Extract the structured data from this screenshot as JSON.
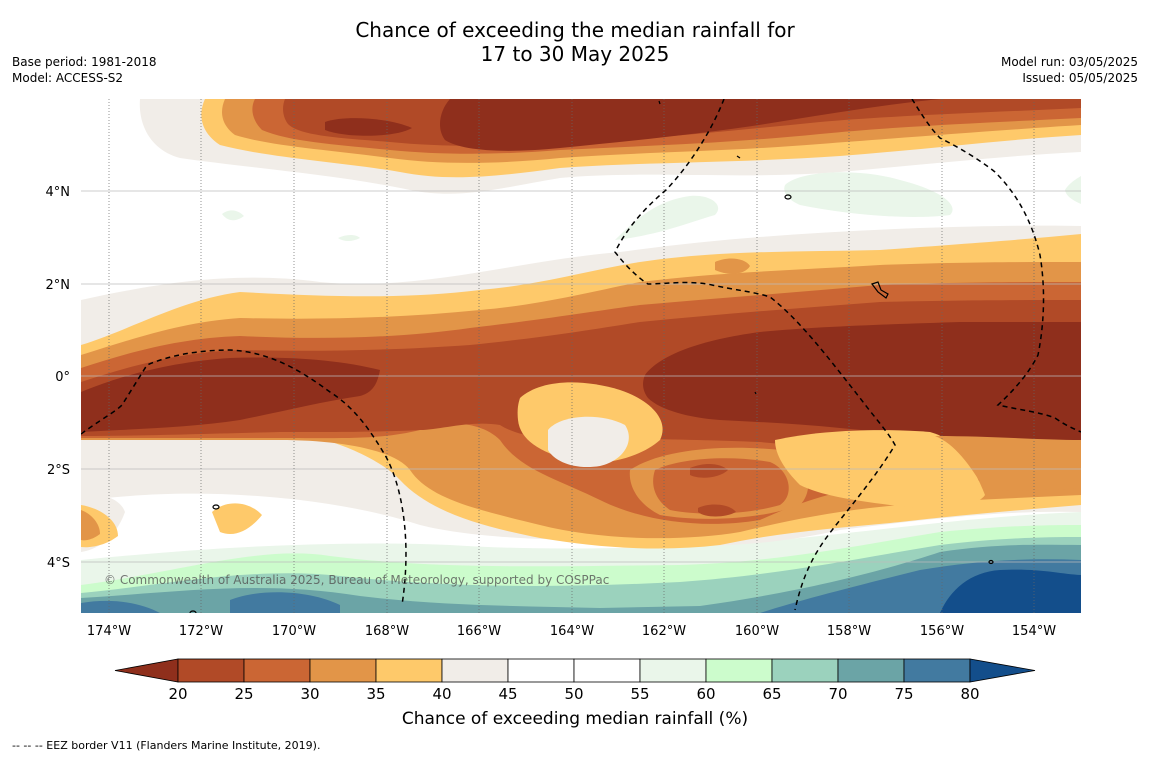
{
  "title_line1": "Chance of exceeding the median rainfall for",
  "title_line2": "17 to 30 May 2025",
  "base_period": "Base period: 1981-2018",
  "model": "Model: ACCESS-S2",
  "model_run": "Model run: 03/05/2025",
  "issued": "Issued: 05/05/2025",
  "copyright": "© Commonwealth of Australia 2025, Bureau of Meteorology, supported by COSPPac",
  "lon_labels": [
    "174°W",
    "172°W",
    "170°W",
    "168°W",
    "166°W",
    "164°W",
    "162°W",
    "160°W",
    "158°W",
    "156°W",
    "154°W"
  ],
  "lat_labels": [
    "4°N",
    "2°N",
    "0°",
    "2°S",
    "4°S"
  ],
  "colorbar": {
    "ticks": [
      "20",
      "25",
      "30",
      "35",
      "40",
      "45",
      "50",
      "55",
      "60",
      "65",
      "70",
      "75",
      "80"
    ],
    "colors": [
      "#8f2f1c",
      "#b14a27",
      "#cb6634",
      "#e29548",
      "#fec96a",
      "#f1ede8",
      "#ffffff",
      "#ffffff",
      "#eaf6ea",
      "#ccfccc",
      "#9bd2bd",
      "#6ba4a6",
      "#427aa0",
      "#134e8b"
    ],
    "label": "Chance of exceeding median rainfall (%)"
  },
  "footnote": "--  --  -- EEZ border V11 (Flanders Marine Institute, 2019)."
}
